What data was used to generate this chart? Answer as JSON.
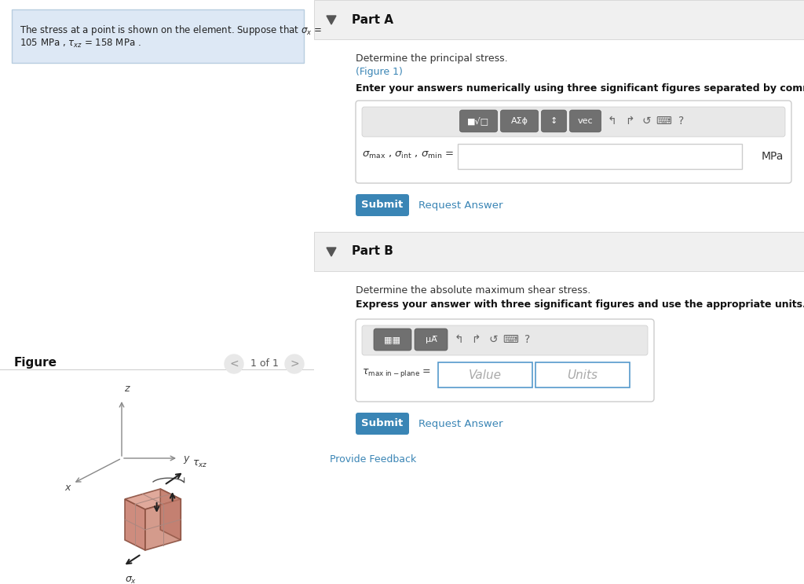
{
  "bg_color": "#ffffff",
  "info_box_bg": "#dde8f5",
  "info_box_border": "#b8cde0",
  "part_a_header": "Part A",
  "part_a_desc1": "Determine the principal stress.",
  "part_a_link": "(Figure 1)",
  "part_a_bold": "Enter your answers numerically using three significant figures separated by commas.",
  "part_a_unit": "MPa",
  "part_b_header": "Part B",
  "part_b_desc1": "Determine the absolute maximum shear stress.",
  "part_b_bold": "Express your answer with three significant figures and use the appropriate units.",
  "part_b_value_placeholder": "Value",
  "part_b_units_placeholder": "Units",
  "submit_color": "#3a85b5",
  "submit_text_color": "#ffffff",
  "link_color": "#3a85b5",
  "figure_label": "Figure",
  "figure_nav": "1 of 1",
  "header_bg": "#f0f0f0",
  "divider_color": "#cccccc",
  "input_bg": "#ffffff",
  "input_border": "#cccccc",
  "input_border_blue": "#5599cc",
  "placeholder_color": "#aaaaaa",
  "toolbar_inner_bg": "#e8e8e8",
  "toolbar_btn_color": "#777777",
  "axis_color": "#888888",
  "cube_right_color": "#c98070",
  "cube_top_color": "#dda090",
  "cube_front_color": "#d09080",
  "cube_edge_color": "#8a5040"
}
